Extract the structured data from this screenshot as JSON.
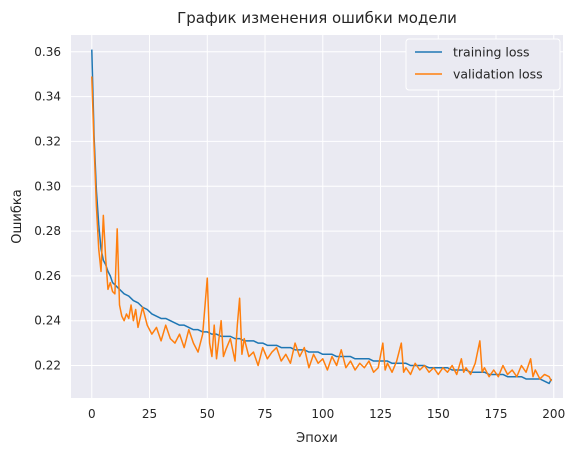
{
  "chart_data": {
    "type": "line",
    "title": "График изменения ошибки модели",
    "xlabel": "Эпохи",
    "ylabel": "Ошибка",
    "xlim": [
      -9,
      204
    ],
    "ylim": [
      0.2055,
      0.3675
    ],
    "xticks": [
      0,
      25,
      50,
      75,
      100,
      125,
      150,
      175,
      200
    ],
    "yticks": [
      0.22,
      0.24,
      0.26,
      0.28,
      0.3,
      0.32,
      0.34,
      0.36
    ],
    "ytick_labels": [
      "0.22",
      "0.24",
      "0.26",
      "0.28",
      "0.30",
      "0.32",
      "0.34",
      "0.36"
    ],
    "grid": true,
    "legend_position": "top-right",
    "series": [
      {
        "name": "training loss",
        "color": "#1f77b4",
        "points": [
          [
            0,
            0.361
          ],
          [
            1,
            0.322
          ],
          [
            2,
            0.298
          ],
          [
            3,
            0.283
          ],
          [
            4,
            0.272
          ],
          [
            5,
            0.267
          ],
          [
            6,
            0.265
          ],
          [
            7,
            0.262
          ],
          [
            8,
            0.26
          ],
          [
            9,
            0.257
          ],
          [
            10,
            0.256
          ],
          [
            12,
            0.254
          ],
          [
            14,
            0.252
          ],
          [
            16,
            0.251
          ],
          [
            18,
            0.249
          ],
          [
            20,
            0.248
          ],
          [
            22,
            0.246
          ],
          [
            24,
            0.245
          ],
          [
            26,
            0.243
          ],
          [
            28,
            0.242
          ],
          [
            30,
            0.241
          ],
          [
            32,
            0.241
          ],
          [
            34,
            0.24
          ],
          [
            36,
            0.239
          ],
          [
            38,
            0.238
          ],
          [
            40,
            0.238
          ],
          [
            42,
            0.237
          ],
          [
            44,
            0.236
          ],
          [
            46,
            0.236
          ],
          [
            48,
            0.235
          ],
          [
            50,
            0.235
          ],
          [
            52,
            0.234
          ],
          [
            54,
            0.234
          ],
          [
            56,
            0.233
          ],
          [
            58,
            0.233
          ],
          [
            60,
            0.233
          ],
          [
            62,
            0.232
          ],
          [
            64,
            0.232
          ],
          [
            66,
            0.231
          ],
          [
            68,
            0.231
          ],
          [
            70,
            0.231
          ],
          [
            72,
            0.23
          ],
          [
            74,
            0.23
          ],
          [
            76,
            0.229
          ],
          [
            78,
            0.229
          ],
          [
            80,
            0.229
          ],
          [
            82,
            0.228
          ],
          [
            84,
            0.228
          ],
          [
            86,
            0.228
          ],
          [
            88,
            0.227
          ],
          [
            90,
            0.227
          ],
          [
            92,
            0.227
          ],
          [
            94,
            0.226
          ],
          [
            96,
            0.226
          ],
          [
            98,
            0.226
          ],
          [
            100,
            0.225
          ],
          [
            102,
            0.225
          ],
          [
            104,
            0.225
          ],
          [
            106,
            0.224
          ],
          [
            108,
            0.224
          ],
          [
            110,
            0.224
          ],
          [
            112,
            0.224
          ],
          [
            114,
            0.223
          ],
          [
            116,
            0.223
          ],
          [
            118,
            0.223
          ],
          [
            120,
            0.223
          ],
          [
            122,
            0.222
          ],
          [
            124,
            0.222
          ],
          [
            126,
            0.222
          ],
          [
            128,
            0.222
          ],
          [
            130,
            0.221
          ],
          [
            132,
            0.221
          ],
          [
            134,
            0.221
          ],
          [
            136,
            0.221
          ],
          [
            138,
            0.22
          ],
          [
            140,
            0.22
          ],
          [
            142,
            0.22
          ],
          [
            144,
            0.22
          ],
          [
            146,
            0.219
          ],
          [
            148,
            0.219
          ],
          [
            150,
            0.219
          ],
          [
            152,
            0.219
          ],
          [
            154,
            0.219
          ],
          [
            156,
            0.218
          ],
          [
            158,
            0.218
          ],
          [
            160,
            0.218
          ],
          [
            162,
            0.218
          ],
          [
            164,
            0.217
          ],
          [
            166,
            0.217
          ],
          [
            168,
            0.217
          ],
          [
            170,
            0.217
          ],
          [
            172,
            0.216
          ],
          [
            174,
            0.216
          ],
          [
            176,
            0.216
          ],
          [
            178,
            0.216
          ],
          [
            180,
            0.215
          ],
          [
            182,
            0.215
          ],
          [
            184,
            0.215
          ],
          [
            186,
            0.215
          ],
          [
            188,
            0.214
          ],
          [
            190,
            0.214
          ],
          [
            192,
            0.214
          ],
          [
            194,
            0.214
          ],
          [
            196,
            0.213
          ],
          [
            198,
            0.212
          ],
          [
            199,
            0.214
          ]
        ]
      },
      {
        "name": "validation loss",
        "color": "#ff7f0e",
        "points": [
          [
            0,
            0.349
          ],
          [
            1,
            0.318
          ],
          [
            2,
            0.291
          ],
          [
            3,
            0.272
          ],
          [
            4,
            0.262
          ],
          [
            5,
            0.287
          ],
          [
            6,
            0.268
          ],
          [
            7,
            0.254
          ],
          [
            8,
            0.257
          ],
          [
            9,
            0.253
          ],
          [
            10,
            0.252
          ],
          [
            11,
            0.281
          ],
          [
            12,
            0.247
          ],
          [
            13,
            0.242
          ],
          [
            14,
            0.24
          ],
          [
            15,
            0.243
          ],
          [
            16,
            0.241
          ],
          [
            17,
            0.247
          ],
          [
            18,
            0.24
          ],
          [
            19,
            0.245
          ],
          [
            20,
            0.237
          ],
          [
            22,
            0.246
          ],
          [
            24,
            0.238
          ],
          [
            26,
            0.234
          ],
          [
            28,
            0.237
          ],
          [
            30,
            0.231
          ],
          [
            32,
            0.238
          ],
          [
            34,
            0.232
          ],
          [
            36,
            0.23
          ],
          [
            38,
            0.234
          ],
          [
            40,
            0.228
          ],
          [
            42,
            0.236
          ],
          [
            44,
            0.23
          ],
          [
            46,
            0.226
          ],
          [
            48,
            0.234
          ],
          [
            50,
            0.259
          ],
          [
            51,
            0.23
          ],
          [
            52,
            0.224
          ],
          [
            53,
            0.238
          ],
          [
            54,
            0.223
          ],
          [
            56,
            0.24
          ],
          [
            57,
            0.224
          ],
          [
            58,
            0.227
          ],
          [
            60,
            0.232
          ],
          [
            62,
            0.222
          ],
          [
            63,
            0.238
          ],
          [
            64,
            0.25
          ],
          [
            65,
            0.225
          ],
          [
            66,
            0.232
          ],
          [
            68,
            0.224
          ],
          [
            70,
            0.226
          ],
          [
            72,
            0.22
          ],
          [
            74,
            0.228
          ],
          [
            76,
            0.223
          ],
          [
            78,
            0.226
          ],
          [
            80,
            0.228
          ],
          [
            82,
            0.222
          ],
          [
            84,
            0.225
          ],
          [
            86,
            0.221
          ],
          [
            88,
            0.23
          ],
          [
            90,
            0.224
          ],
          [
            92,
            0.228
          ],
          [
            94,
            0.219
          ],
          [
            96,
            0.225
          ],
          [
            98,
            0.221
          ],
          [
            100,
            0.223
          ],
          [
            102,
            0.218
          ],
          [
            104,
            0.224
          ],
          [
            106,
            0.22
          ],
          [
            108,
            0.227
          ],
          [
            110,
            0.219
          ],
          [
            112,
            0.222
          ],
          [
            114,
            0.218
          ],
          [
            116,
            0.221
          ],
          [
            118,
            0.219
          ],
          [
            120,
            0.222
          ],
          [
            122,
            0.217
          ],
          [
            124,
            0.219
          ],
          [
            126,
            0.23
          ],
          [
            127,
            0.218
          ],
          [
            128,
            0.221
          ],
          [
            130,
            0.217
          ],
          [
            132,
            0.222
          ],
          [
            134,
            0.23
          ],
          [
            135,
            0.217
          ],
          [
            136,
            0.219
          ],
          [
            138,
            0.216
          ],
          [
            140,
            0.221
          ],
          [
            142,
            0.218
          ],
          [
            144,
            0.22
          ],
          [
            146,
            0.217
          ],
          [
            148,
            0.219
          ],
          [
            150,
            0.216
          ],
          [
            152,
            0.219
          ],
          [
            154,
            0.217
          ],
          [
            156,
            0.22
          ],
          [
            158,
            0.216
          ],
          [
            160,
            0.223
          ],
          [
            161,
            0.217
          ],
          [
            162,
            0.219
          ],
          [
            164,
            0.216
          ],
          [
            166,
            0.221
          ],
          [
            168,
            0.231
          ],
          [
            169,
            0.217
          ],
          [
            170,
            0.219
          ],
          [
            172,
            0.215
          ],
          [
            174,
            0.218
          ],
          [
            176,
            0.215
          ],
          [
            178,
            0.22
          ],
          [
            180,
            0.216
          ],
          [
            182,
            0.218
          ],
          [
            184,
            0.215
          ],
          [
            186,
            0.22
          ],
          [
            188,
            0.217
          ],
          [
            190,
            0.223
          ],
          [
            191,
            0.215
          ],
          [
            192,
            0.218
          ],
          [
            194,
            0.214
          ],
          [
            196,
            0.216
          ],
          [
            198,
            0.215
          ],
          [
            199,
            0.213
          ]
        ]
      }
    ]
  }
}
